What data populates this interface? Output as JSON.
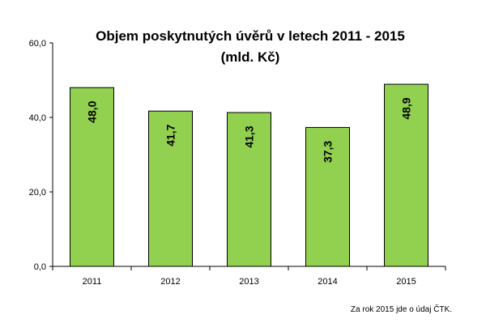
{
  "chart_data": {
    "type": "bar",
    "title": "Objem poskytnutých úvěrů v letech 2011 - 2015",
    "subtitle": "(mld. Kč)",
    "categories": [
      "2011",
      "2012",
      "2013",
      "2014",
      "2015"
    ],
    "values": [
      48.0,
      41.7,
      41.3,
      37.3,
      48.9
    ],
    "data_labels": [
      "48,0",
      "41,7",
      "41,3",
      "37,3",
      "48,9"
    ],
    "ylim": [
      0,
      60
    ],
    "yticks": [
      0,
      20,
      40,
      60
    ],
    "ytick_labels": [
      "0,0",
      "20,0",
      "40,0",
      "60,0"
    ],
    "xlabel": "",
    "ylabel": "",
    "grid": false,
    "legend": "none",
    "bar_color": "#92d050",
    "bar_edge_color": "#000000"
  },
  "footnote": "Za rok 2015 jde o údaj ČTK."
}
